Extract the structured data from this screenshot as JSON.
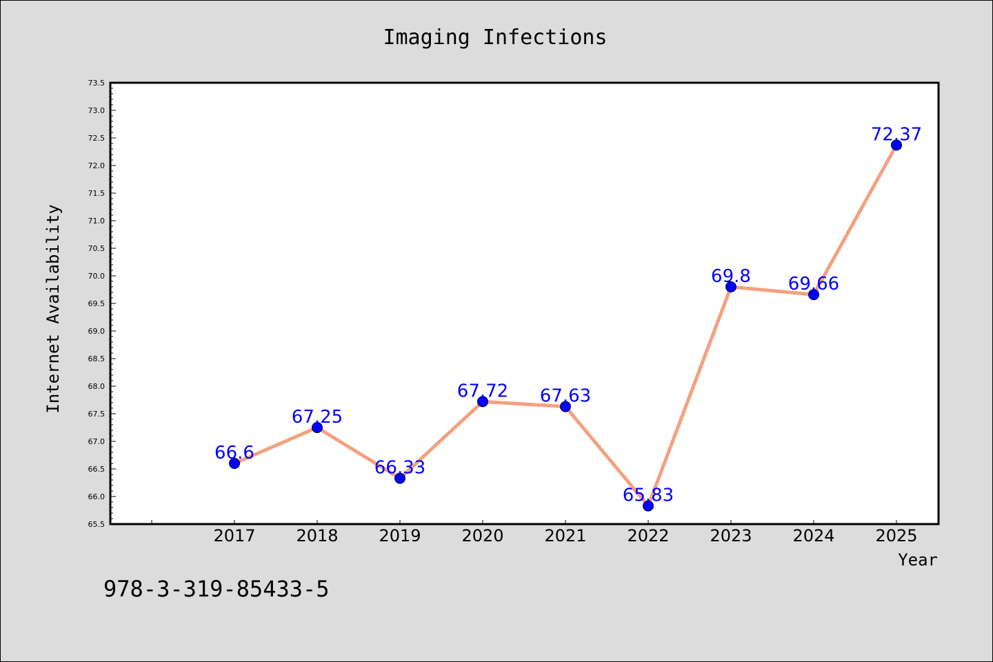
{
  "chart_data": {
    "type": "line",
    "title": "Imaging Infections",
    "xlabel": "Year",
    "ylabel": "Internet Availability",
    "categories": [
      "2017",
      "2018",
      "2019",
      "2020",
      "2021",
      "2022",
      "2023",
      "2024",
      "2025"
    ],
    "series": [
      {
        "values": [
          66.6,
          67.25,
          66.33,
          67.72,
          67.63,
          65.83,
          69.8,
          69.66,
          72.37
        ],
        "data_labels": [
          "66.6",
          "67.25",
          "66.33",
          "67.72",
          "67.63",
          "65.83",
          "69.8",
          "69.66",
          "72.37"
        ]
      }
    ],
    "ylim": [
      65.5,
      73.5
    ],
    "ytick_labels": [
      "65.5",
      "66.0",
      "66.5",
      "67.0",
      "67.5",
      "68.0",
      "68.5",
      "69.0",
      "69.5",
      "70.0",
      "70.5",
      "71.0",
      "71.5",
      "72.0",
      "72.5",
      "73.0",
      "73.5"
    ],
    "grid": false,
    "legend": "none",
    "colors": {
      "line": "#f4a07f",
      "marker": "#0000ff",
      "label": "#0000ff",
      "plot_background": "#ffffff",
      "figure_background": "#dcdcdc"
    }
  },
  "footer": {
    "isbn": "978-3-319-85433-5"
  }
}
